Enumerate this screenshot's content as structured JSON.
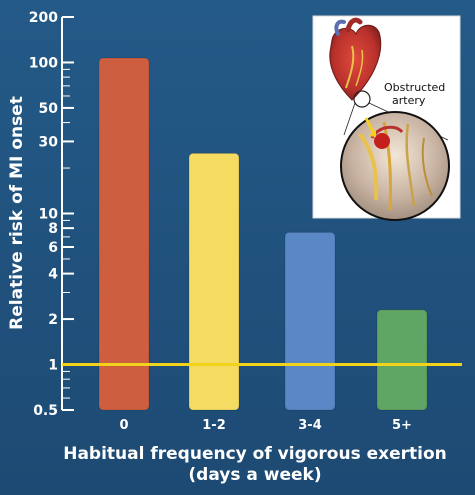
{
  "chart_data": {
    "type": "bar",
    "title": "",
    "xlabel": "Habitual frequency of vigorous exertion",
    "xlabel_line2": "(days a week)",
    "ylabel": "Relative risk of MI onset",
    "y_scale": "log",
    "ylim": [
      0.5,
      200
    ],
    "y_ticks": [
      0.5,
      1,
      2,
      4,
      6,
      8,
      10,
      30,
      50,
      100,
      200
    ],
    "y_tick_labels": [
      "0.5",
      "1",
      "2",
      "4",
      "6",
      "8",
      "10",
      "30",
      "50",
      "100",
      "200"
    ],
    "categories": [
      "0",
      "1-2",
      "3-4",
      "5+"
    ],
    "values": [
      107,
      25,
      7.5,
      2.3
    ],
    "bar_colors": [
      "#cd5e40",
      "#f4db62",
      "#5a88c6",
      "#5fa563"
    ],
    "reference_line": {
      "value": 1,
      "color": "#f2d21b"
    },
    "grid": false,
    "legend": "none"
  },
  "inset": {
    "label_line1": "Obstructed",
    "label_line2": "artery"
  },
  "colors": {
    "background": "#1f4f7a",
    "axis": "#ffffff"
  }
}
